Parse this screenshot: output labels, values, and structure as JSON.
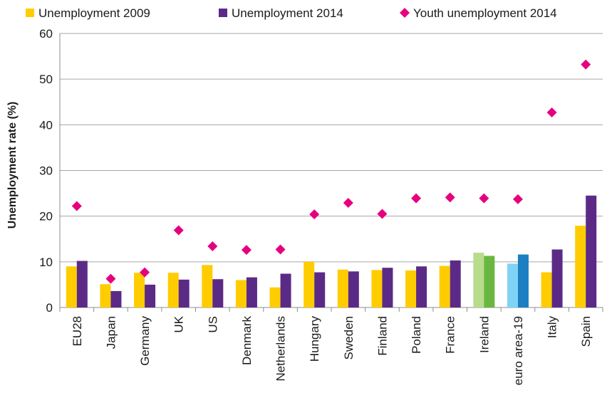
{
  "chart_data": {
    "type": "bar",
    "title": "",
    "xlabel": "",
    "ylabel": "Unemployment rate (%)",
    "ylim": [
      0,
      60
    ],
    "yticks": [
      0,
      10,
      20,
      30,
      40,
      50,
      60
    ],
    "grid": true,
    "legend_position": "top",
    "categories": [
      "EU28",
      "Japan",
      "Germany",
      "UK",
      "US",
      "Denmark",
      "Netherlands",
      "Hungary",
      "Sweden",
      "Finland",
      "Poland",
      "France",
      "Ireland",
      "euro area-19",
      "Italy",
      "Spain"
    ],
    "series": [
      {
        "name": "Unemployment 2009",
        "kind": "bar",
        "color": "#ffcc00",
        "values": [
          9.0,
          5.1,
          7.6,
          7.6,
          9.3,
          6.0,
          4.4,
          10.0,
          8.3,
          8.2,
          8.1,
          9.1,
          12.0,
          9.6,
          7.7,
          17.9
        ],
        "highlight_colors": {
          "Ireland": "#b7dd8c",
          "euro area-19": "#7fd3f7"
        }
      },
      {
        "name": "Unemployment 2014",
        "kind": "bar",
        "color": "#5b2a86",
        "values": [
          10.2,
          3.6,
          5.0,
          6.1,
          6.2,
          6.6,
          7.4,
          7.7,
          7.9,
          8.7,
          9.0,
          10.3,
          11.3,
          11.6,
          12.7,
          24.5
        ],
        "highlight_colors": {
          "Ireland": "#6ab73f",
          "euro area-19": "#1b7fc1"
        }
      },
      {
        "name": "Youth unemployment 2014",
        "kind": "marker",
        "marker": "diamond",
        "color": "#e6007e",
        "values": [
          22.2,
          6.3,
          7.7,
          16.9,
          13.4,
          12.6,
          12.7,
          20.4,
          22.9,
          20.5,
          23.9,
          24.1,
          23.9,
          23.7,
          42.7,
          53.2
        ]
      }
    ]
  }
}
